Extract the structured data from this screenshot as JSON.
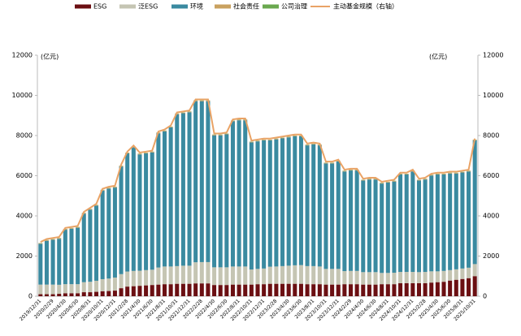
{
  "chart_data": {
    "type": "bar",
    "categories": [
      "2019/12/31",
      null,
      "2020/2/29",
      null,
      "2020/4/30",
      null,
      "2020/6/30",
      null,
      "2020/8/31",
      null,
      "2020/10/31",
      null,
      "2020/12/31",
      null,
      "2021/2/28",
      null,
      "2021/4/30",
      null,
      "2021/6/30",
      null,
      "2021/8/31",
      null,
      "2021/10/31",
      null,
      "2021/12/31",
      null,
      "2022/2/28",
      null,
      "2022/4/30",
      null,
      "2022/6/30",
      null,
      "2022/8/31",
      null,
      "2022/10/31",
      null,
      "2022/12/31",
      null,
      "2023/2/28",
      null,
      "2023/4/30",
      null,
      "2023/6/30",
      null,
      "2023/8/31",
      null,
      "2023/10/31",
      null,
      "2023/12/31",
      null,
      "2024/2/29",
      null,
      "2024/4/30",
      null,
      "2024/6/30",
      null,
      "2024/8/31",
      null,
      "2024/10/31",
      null,
      "2024/12/31",
      null,
      "2025/2/28",
      null,
      "2025/4/30",
      null,
      "2025/6/30",
      null,
      "2025/8/31",
      null,
      "2025/10/31"
    ],
    "series": [
      {
        "name": "ESG",
        "color": "#6b0f12",
        "values": [
          100,
          100,
          100,
          120,
          150,
          150,
          150,
          200,
          200,
          220,
          250,
          260,
          280,
          400,
          480,
          500,
          520,
          540,
          560,
          580,
          600,
          600,
          620,
          620,
          620,
          640,
          640,
          640,
          560,
          560,
          560,
          580,
          580,
          580,
          580,
          600,
          600,
          620,
          620,
          620,
          620,
          620,
          620,
          600,
          600,
          600,
          580,
          580,
          580,
          600,
          600,
          600,
          580,
          580,
          580,
          600,
          600,
          600,
          650,
          650,
          650,
          650,
          650,
          680,
          700,
          720,
          780,
          820,
          860,
          900,
          1000
        ]
      },
      {
        "name": "泛ESG",
        "color": "#c5c5b3",
        "values": [
          480,
          480,
          480,
          450,
          450,
          450,
          450,
          500,
          520,
          550,
          600,
          620,
          650,
          700,
          750,
          760,
          750,
          760,
          760,
          850,
          880,
          880,
          880,
          900,
          900,
          1050,
          1060,
          1060,
          880,
          880,
          880,
          900,
          900,
          900,
          750,
          760,
          780,
          850,
          860,
          880,
          900,
          920,
          930,
          900,
          900,
          880,
          780,
          780,
          780,
          650,
          660,
          660,
          620,
          620,
          620,
          560,
          560,
          570,
          560,
          560,
          560,
          550,
          560,
          560,
          540,
          540,
          520,
          520,
          520,
          520,
          600
        ]
      },
      {
        "name": "环境",
        "color": "#3a8aa0",
        "values": [
          2030,
          2180,
          2230,
          2290,
          2710,
          2760,
          2810,
          3410,
          3590,
          3740,
          4410,
          4480,
          4480,
          5360,
          5880,
          6150,
          5790,
          5810,
          5840,
          6680,
          6730,
          6930,
          7560,
          7590,
          7640,
          8020,
          8010,
          8010,
          6570,
          6570,
          6620,
          7230,
          7280,
          7280,
          6330,
          6350,
          6380,
          6290,
          6330,
          6360,
          6390,
          6420,
          6410,
          6010,
          6060,
          6030,
          5250,
          5250,
          5350,
          4960,
          5000,
          5000,
          4560,
          4610,
          4610,
          4450,
          4500,
          4540,
          4850,
          4850,
          5000,
          4560,
          4600,
          4770,
          4820,
          4800,
          4810,
          4770,
          4780,
          4790,
          6160
        ]
      },
      {
        "name": "社会责任",
        "color": "#c9a15f",
        "values": [
          30,
          30,
          30,
          30,
          30,
          30,
          30,
          30,
          30,
          30,
          30,
          30,
          30,
          30,
          30,
          30,
          30,
          30,
          30,
          30,
          30,
          30,
          30,
          30,
          30,
          30,
          30,
          30,
          30,
          30,
          30,
          30,
          30,
          30,
          30,
          30,
          30,
          30,
          30,
          30,
          30,
          30,
          30,
          30,
          30,
          30,
          30,
          30,
          30,
          30,
          30,
          30,
          30,
          30,
          30,
          30,
          30,
          30,
          30,
          30,
          30,
          30,
          30,
          30,
          30,
          30,
          30,
          30,
          30,
          30,
          30
        ]
      },
      {
        "name": "公司治理",
        "color": "#6aa84f",
        "values": [
          10,
          10,
          10,
          10,
          10,
          10,
          10,
          10,
          10,
          10,
          10,
          10,
          10,
          10,
          10,
          10,
          10,
          10,
          10,
          10,
          10,
          10,
          10,
          10,
          10,
          10,
          10,
          10,
          10,
          10,
          10,
          10,
          10,
          10,
          10,
          10,
          10,
          10,
          10,
          10,
          10,
          10,
          10,
          10,
          10,
          10,
          10,
          10,
          10,
          10,
          10,
          10,
          10,
          10,
          10,
          10,
          10,
          10,
          10,
          10,
          10,
          10,
          10,
          10,
          10,
          10,
          10,
          10,
          10,
          10,
          10
        ]
      },
      {
        "name": "主动基金规模（右轴）",
        "color": "#e9a366",
        "axis": "y2",
        "kind": "line",
        "values": [
          2700,
          2850,
          2900,
          2950,
          3400,
          3450,
          3500,
          4200,
          4400,
          4600,
          5350,
          5450,
          5500,
          6550,
          7200,
          7500,
          7150,
          7200,
          7250,
          8200,
          8300,
          8500,
          9150,
          9200,
          9250,
          9800,
          9800,
          9800,
          8100,
          8100,
          8150,
          8800,
          8850,
          8850,
          7750,
          7800,
          7850,
          7850,
          7900,
          7950,
          8000,
          8050,
          8050,
          7600,
          7650,
          7600,
          6700,
          6700,
          6800,
          6300,
          6350,
          6350,
          5850,
          5900,
          5900,
          5700,
          5750,
          5800,
          6150,
          6150,
          6300,
          5850,
          5900,
          6100,
          6150,
          6150,
          6200,
          6200,
          6250,
          6300,
          7850
        ]
      }
    ],
    "y_label": "(亿元)",
    "y2_label": "(亿元)",
    "ylim": [
      0,
      12000
    ],
    "yticks": [
      0,
      2000,
      4000,
      6000,
      8000,
      10000,
      12000
    ],
    "y2lim": [
      0,
      12000
    ],
    "y2ticks": [
      0,
      2000,
      4000,
      6000,
      8000,
      10000,
      12000
    ],
    "legend": "top"
  }
}
